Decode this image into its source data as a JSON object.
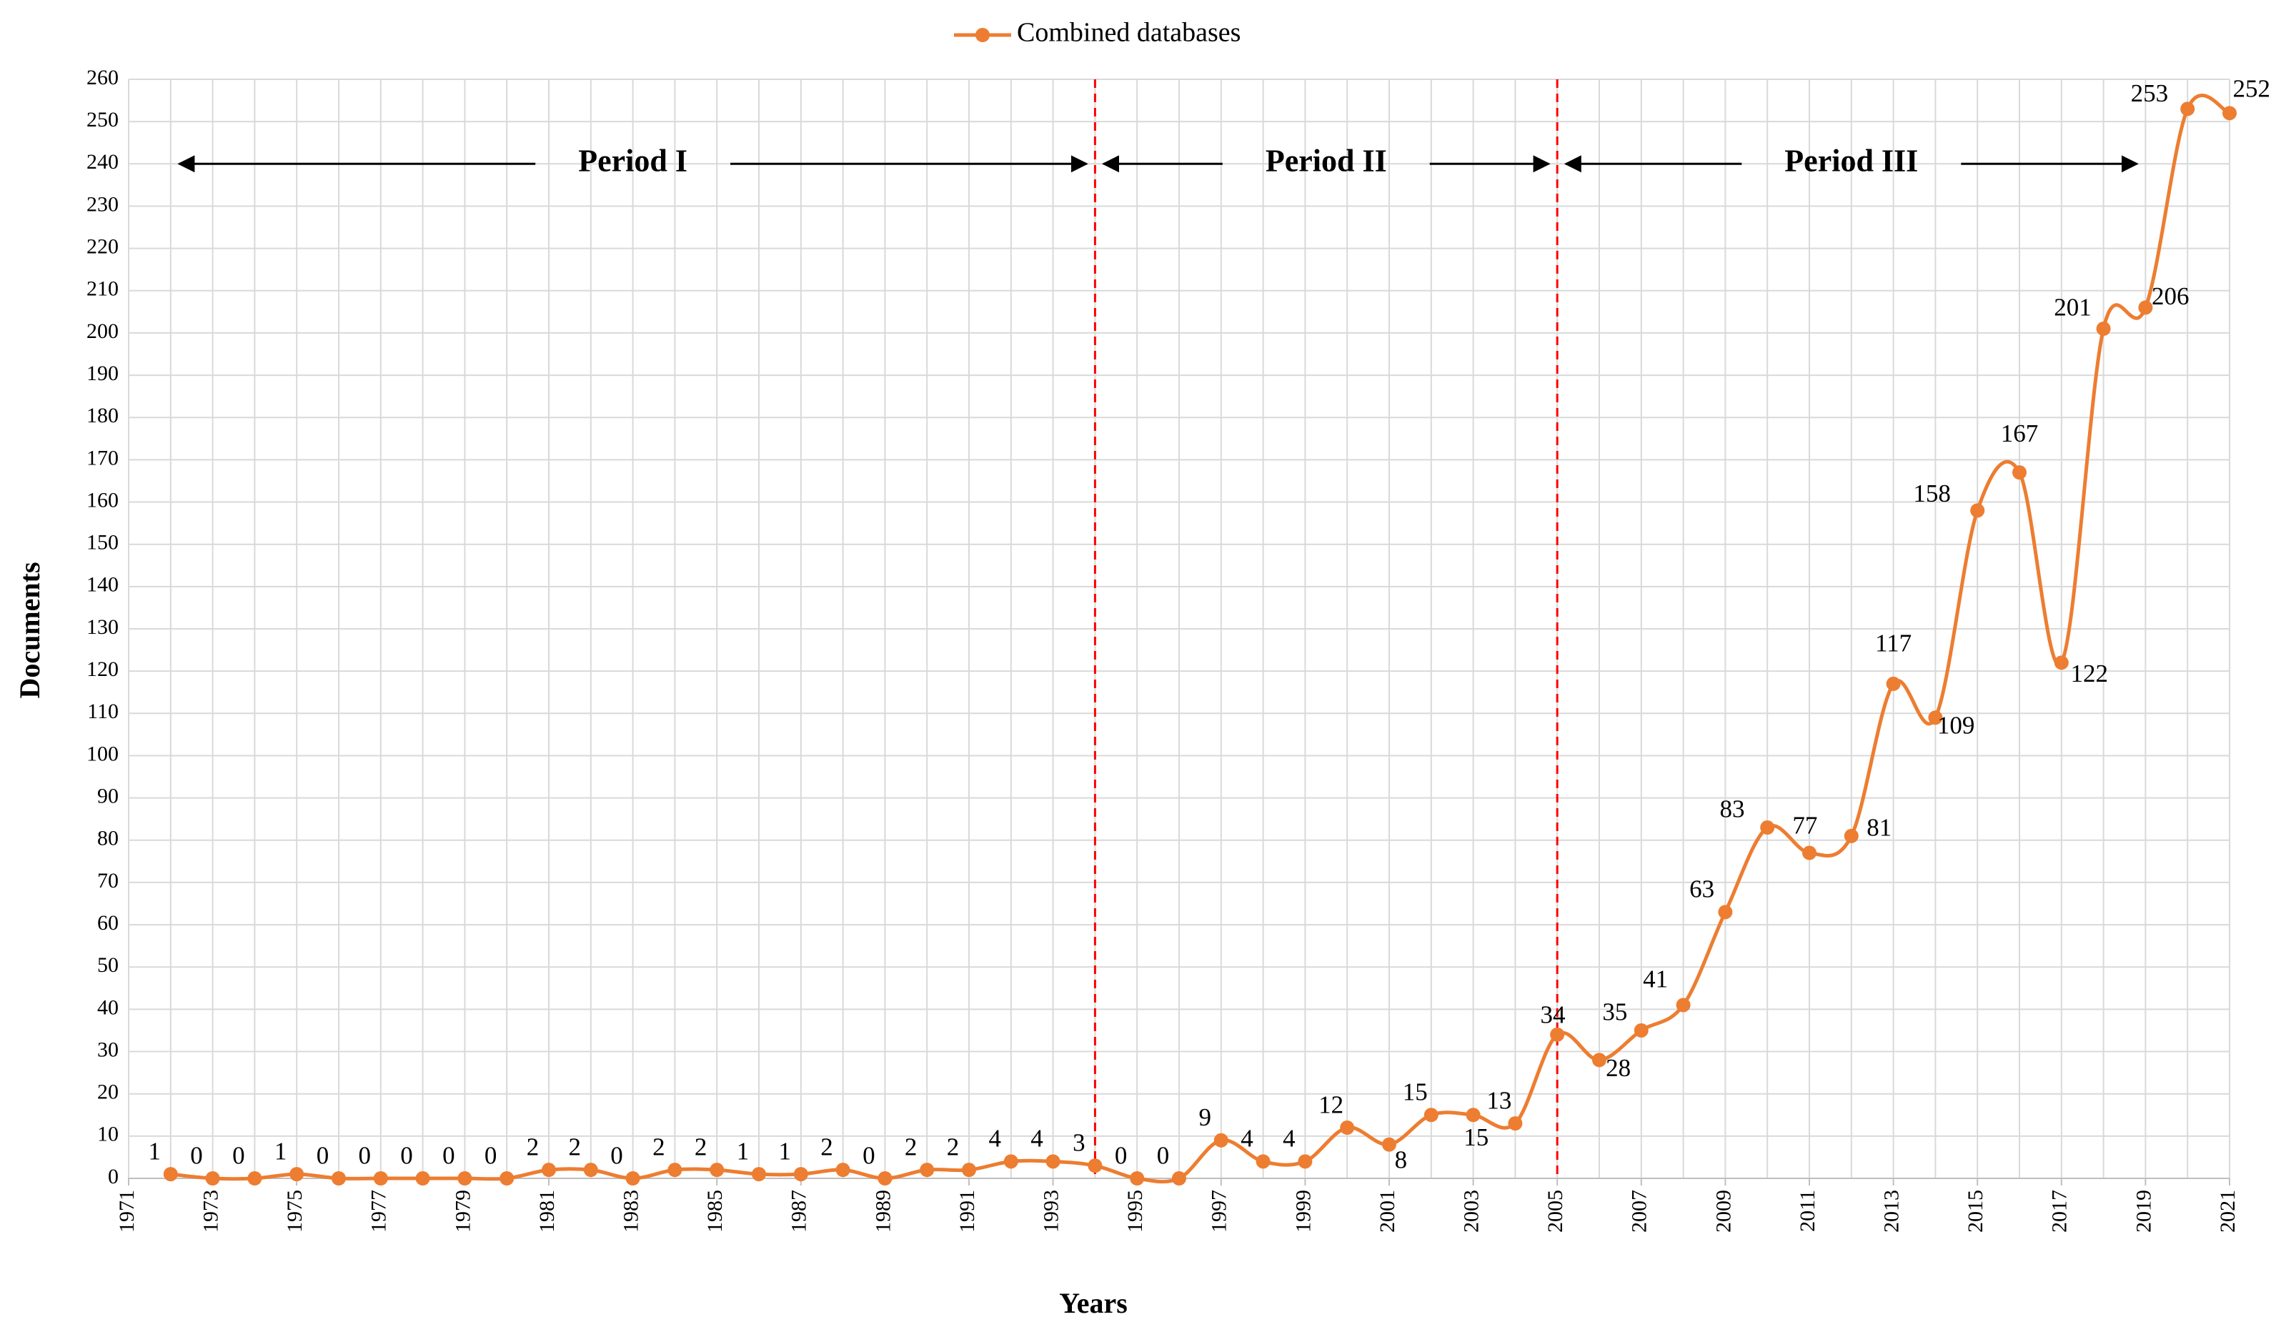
{
  "chart_data": {
    "type": "line",
    "x_label": "Years",
    "y_label": "Documents",
    "x": [
      1972,
      1973,
      1974,
      1975,
      1976,
      1977,
      1978,
      1979,
      1980,
      1981,
      1982,
      1983,
      1984,
      1985,
      1986,
      1987,
      1988,
      1989,
      1990,
      1991,
      1992,
      1993,
      1994,
      1995,
      1996,
      1997,
      1998,
      1999,
      2000,
      2001,
      2002,
      2003,
      2004,
      2005,
      2006,
      2007,
      2008,
      2009,
      2010,
      2011,
      2012,
      2013,
      2014,
      2015,
      2016,
      2017,
      2018,
      2019,
      2020,
      2021
    ],
    "series": [
      {
        "name": "Combined databases",
        "color": "#ed7d31",
        "values": [
          1,
          0,
          0,
          1,
          0,
          0,
          0,
          0,
          0,
          2,
          2,
          0,
          2,
          2,
          1,
          1,
          2,
          0,
          2,
          2,
          4,
          4,
          3,
          0,
          0,
          9,
          4,
          4,
          12,
          8,
          15,
          15,
          13,
          34,
          28,
          35,
          41,
          63,
          83,
          77,
          81,
          117,
          109,
          158,
          167,
          122,
          201,
          206,
          253,
          252
        ]
      }
    ],
    "xlim": [
      1971,
      2021
    ],
    "xticks": [
      1971,
      1973,
      1975,
      1977,
      1979,
      1981,
      1983,
      1985,
      1987,
      1989,
      1991,
      1993,
      1995,
      1997,
      1999,
      2001,
      2003,
      2005,
      2007,
      2009,
      2011,
      2013,
      2015,
      2017,
      2019,
      2021
    ],
    "ylim": [
      0,
      260
    ],
    "yticks": [
      0,
      10,
      20,
      30,
      40,
      50,
      60,
      70,
      80,
      90,
      100,
      110,
      120,
      130,
      140,
      150,
      160,
      170,
      180,
      190,
      200,
      210,
      220,
      230,
      240,
      250,
      260
    ],
    "grid": true,
    "legend": "top",
    "dividers": [
      1994,
      2005
    ],
    "divider_color": "#ff0000",
    "periods": [
      {
        "label": "Period I",
        "start": 1972,
        "end": 1994
      },
      {
        "label": "Period II",
        "start": 1994,
        "end": 2005
      },
      {
        "label": "Period III",
        "start": 2005,
        "end": 2019
      }
    ],
    "period_y": 240
  }
}
